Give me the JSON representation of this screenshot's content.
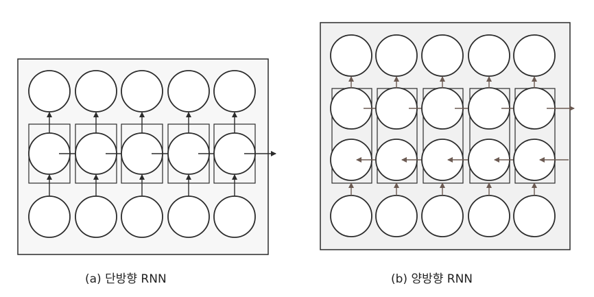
{
  "captions": {
    "unidirectional": "(a) 단방향 RNN",
    "bidirectional": "(b) 양방향 RNN"
  },
  "colors": {
    "line": "#2b2b2b",
    "panel_bg_a": "#f7f7f7",
    "panel_bg_b": "#f1f1f1",
    "arrow_b": "#6b5a52"
  },
  "unidirectional_rnn": {
    "time_steps": 5,
    "layers": [
      "output",
      "hidden",
      "input"
    ],
    "hidden_direction": "forward"
  },
  "bidirectional_rnn": {
    "time_steps": 5,
    "layers": [
      "output",
      "hidden-forward",
      "hidden-backward",
      "input"
    ],
    "hidden_directions": [
      "forward",
      "backward"
    ]
  }
}
